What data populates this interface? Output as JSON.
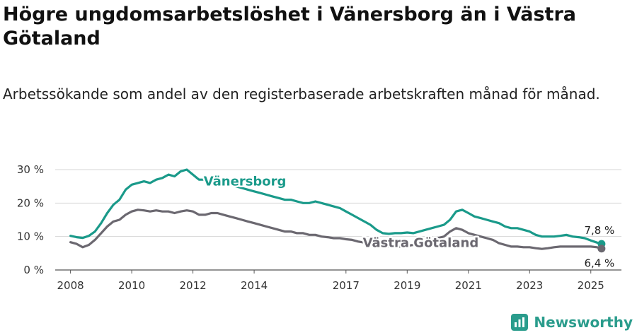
{
  "title": "Högre ungdomsarbetslöshet i Vänersborg än i Västra Götaland",
  "subtitle": "Arbetssökande som andel av den registerbaserade arbetskraften månad för månad.",
  "brand": {
    "name": "Newsworthy",
    "color": "#2a9c8c"
  },
  "chart_data": {
    "type": "line",
    "x_ticks": [
      "2008",
      "2010",
      "2012",
      "2014",
      "2017",
      "2019",
      "2021",
      "2023",
      "2025"
    ],
    "y_ticks": [
      "0 %",
      "10 %",
      "20 %",
      "30 %"
    ],
    "ylim": [
      0,
      30
    ],
    "grid": true,
    "series": [
      {
        "name": "Vänersborg",
        "color": "#1a9a8a",
        "end_label": "7,8 %",
        "points": [
          [
            2008.0,
            10.2
          ],
          [
            2008.2,
            9.8
          ],
          [
            2008.4,
            9.6
          ],
          [
            2008.6,
            10.2
          ],
          [
            2008.8,
            11.5
          ],
          [
            2009.0,
            14.0
          ],
          [
            2009.2,
            17.0
          ],
          [
            2009.4,
            19.5
          ],
          [
            2009.6,
            21.0
          ],
          [
            2009.8,
            24.0
          ],
          [
            2010.0,
            25.5
          ],
          [
            2010.2,
            26.0
          ],
          [
            2010.4,
            26.5
          ],
          [
            2010.6,
            26.0
          ],
          [
            2010.8,
            27.0
          ],
          [
            2011.0,
            27.5
          ],
          [
            2011.2,
            28.5
          ],
          [
            2011.4,
            28.0
          ],
          [
            2011.6,
            29.5
          ],
          [
            2011.8,
            30.0
          ],
          [
            2012.0,
            28.5
          ],
          [
            2012.2,
            27.0
          ],
          [
            2012.4,
            27.0
          ],
          [
            2012.6,
            26.5
          ],
          [
            2012.8,
            26.5
          ],
          [
            2013.0,
            26.0
          ],
          [
            2013.2,
            25.5
          ],
          [
            2013.4,
            25.0
          ],
          [
            2013.6,
            24.5
          ],
          [
            2013.8,
            24.0
          ],
          [
            2014.0,
            23.5
          ],
          [
            2014.2,
            23.0
          ],
          [
            2014.4,
            22.5
          ],
          [
            2014.6,
            22.0
          ],
          [
            2014.8,
            21.5
          ],
          [
            2015.0,
            21.0
          ],
          [
            2015.2,
            21.0
          ],
          [
            2015.4,
            20.5
          ],
          [
            2015.6,
            20.0
          ],
          [
            2015.8,
            20.0
          ],
          [
            2016.0,
            20.5
          ],
          [
            2016.2,
            20.0
          ],
          [
            2016.4,
            19.5
          ],
          [
            2016.6,
            19.0
          ],
          [
            2016.8,
            18.5
          ],
          [
            2017.0,
            17.5
          ],
          [
            2017.2,
            16.5
          ],
          [
            2017.4,
            15.5
          ],
          [
            2017.6,
            14.5
          ],
          [
            2017.8,
            13.5
          ],
          [
            2018.0,
            12.0
          ],
          [
            2018.2,
            11.0
          ],
          [
            2018.4,
            10.8
          ],
          [
            2018.6,
            11.0
          ],
          [
            2018.8,
            11.0
          ],
          [
            2019.0,
            11.2
          ],
          [
            2019.2,
            11.0
          ],
          [
            2019.4,
            11.5
          ],
          [
            2019.6,
            12.0
          ],
          [
            2019.8,
            12.5
          ],
          [
            2020.0,
            13.0
          ],
          [
            2020.2,
            13.5
          ],
          [
            2020.4,
            15.0
          ],
          [
            2020.6,
            17.5
          ],
          [
            2020.8,
            18.0
          ],
          [
            2021.0,
            17.0
          ],
          [
            2021.2,
            16.0
          ],
          [
            2021.4,
            15.5
          ],
          [
            2021.6,
            15.0
          ],
          [
            2021.8,
            14.5
          ],
          [
            2022.0,
            14.0
          ],
          [
            2022.2,
            13.0
          ],
          [
            2022.4,
            12.5
          ],
          [
            2022.6,
            12.5
          ],
          [
            2022.8,
            12.0
          ],
          [
            2023.0,
            11.5
          ],
          [
            2023.2,
            10.5
          ],
          [
            2023.4,
            10.0
          ],
          [
            2023.6,
            10.0
          ],
          [
            2023.8,
            10.0
          ],
          [
            2024.0,
            10.2
          ],
          [
            2024.2,
            10.5
          ],
          [
            2024.4,
            10.0
          ],
          [
            2024.6,
            9.8
          ],
          [
            2024.8,
            9.5
          ],
          [
            2025.0,
            8.8
          ],
          [
            2025.2,
            8.2
          ],
          [
            2025.35,
            7.8
          ]
        ]
      },
      {
        "name": "Västra Götaland",
        "color": "#6b6870",
        "end_label": "6,4 %",
        "points": [
          [
            2008.0,
            8.3
          ],
          [
            2008.2,
            7.8
          ],
          [
            2008.4,
            6.8
          ],
          [
            2008.6,
            7.5
          ],
          [
            2008.8,
            9.0
          ],
          [
            2009.0,
            11.0
          ],
          [
            2009.2,
            13.0
          ],
          [
            2009.4,
            14.5
          ],
          [
            2009.6,
            15.0
          ],
          [
            2009.8,
            16.5
          ],
          [
            2010.0,
            17.5
          ],
          [
            2010.2,
            18.0
          ],
          [
            2010.4,
            17.8
          ],
          [
            2010.6,
            17.5
          ],
          [
            2010.8,
            17.8
          ],
          [
            2011.0,
            17.5
          ],
          [
            2011.2,
            17.5
          ],
          [
            2011.4,
            17.0
          ],
          [
            2011.6,
            17.5
          ],
          [
            2011.8,
            17.8
          ],
          [
            2012.0,
            17.5
          ],
          [
            2012.2,
            16.5
          ],
          [
            2012.4,
            16.5
          ],
          [
            2012.6,
            17.0
          ],
          [
            2012.8,
            17.0
          ],
          [
            2013.0,
            16.5
          ],
          [
            2013.2,
            16.0
          ],
          [
            2013.4,
            15.5
          ],
          [
            2013.6,
            15.0
          ],
          [
            2013.8,
            14.5
          ],
          [
            2014.0,
            14.0
          ],
          [
            2014.2,
            13.5
          ],
          [
            2014.4,
            13.0
          ],
          [
            2014.6,
            12.5
          ],
          [
            2014.8,
            12.0
          ],
          [
            2015.0,
            11.5
          ],
          [
            2015.2,
            11.5
          ],
          [
            2015.4,
            11.0
          ],
          [
            2015.6,
            11.0
          ],
          [
            2015.8,
            10.5
          ],
          [
            2016.0,
            10.5
          ],
          [
            2016.2,
            10.0
          ],
          [
            2016.4,
            9.8
          ],
          [
            2016.6,
            9.5
          ],
          [
            2016.8,
            9.5
          ],
          [
            2017.0,
            9.2
          ],
          [
            2017.2,
            9.0
          ],
          [
            2017.4,
            8.5
          ],
          [
            2017.6,
            8.2
          ],
          [
            2017.8,
            8.0
          ],
          [
            2018.0,
            7.5
          ],
          [
            2018.2,
            7.2
          ],
          [
            2018.4,
            7.0
          ],
          [
            2018.6,
            7.0
          ],
          [
            2018.8,
            7.0
          ],
          [
            2019.0,
            7.2
          ],
          [
            2019.2,
            7.5
          ],
          [
            2019.4,
            8.0
          ],
          [
            2019.6,
            8.5
          ],
          [
            2019.8,
            9.0
          ],
          [
            2020.0,
            9.5
          ],
          [
            2020.2,
            10.0
          ],
          [
            2020.4,
            11.5
          ],
          [
            2020.6,
            12.5
          ],
          [
            2020.8,
            12.0
          ],
          [
            2021.0,
            11.0
          ],
          [
            2021.2,
            10.5
          ],
          [
            2021.4,
            10.0
          ],
          [
            2021.6,
            9.5
          ],
          [
            2021.8,
            9.0
          ],
          [
            2022.0,
            8.0
          ],
          [
            2022.2,
            7.5
          ],
          [
            2022.4,
            7.0
          ],
          [
            2022.6,
            7.0
          ],
          [
            2022.8,
            6.8
          ],
          [
            2023.0,
            6.8
          ],
          [
            2023.2,
            6.5
          ],
          [
            2023.4,
            6.3
          ],
          [
            2023.6,
            6.5
          ],
          [
            2023.8,
            6.8
          ],
          [
            2024.0,
            7.0
          ],
          [
            2024.2,
            7.0
          ],
          [
            2024.4,
            7.0
          ],
          [
            2024.6,
            7.0
          ],
          [
            2024.8,
            7.0
          ],
          [
            2025.0,
            7.0
          ],
          [
            2025.2,
            6.8
          ],
          [
            2025.35,
            6.4
          ]
        ]
      }
    ]
  }
}
